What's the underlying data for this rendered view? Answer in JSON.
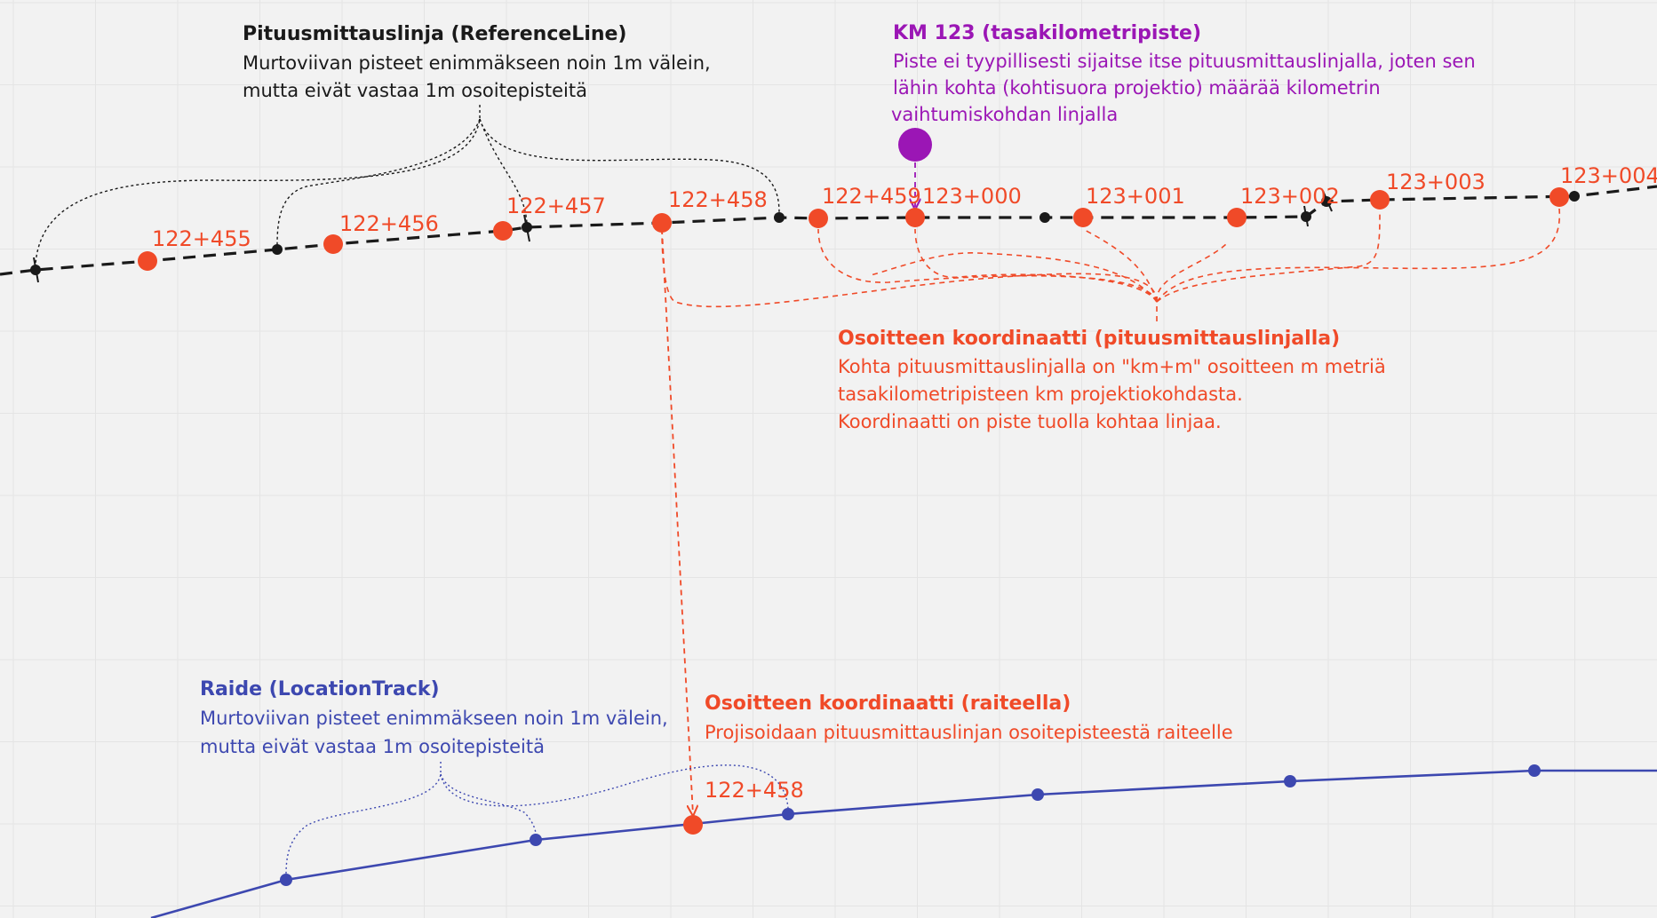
{
  "colors": {
    "background": "#f2f2f2",
    "grid": "#e4e4e4",
    "black": "#1a1a1a",
    "red": "#f04a28",
    "purple": "#9b16b5",
    "blue": "#3d48b0"
  },
  "reference_line_note": {
    "title": "Pituusmittauslinja (ReferenceLine)",
    "line1": "Murtoviivan pisteet enimmäkseen noin 1m välein,",
    "line2": "mutta eivät vastaa 1m osoitepisteitä"
  },
  "km_post_note": {
    "title": "KM 123 (tasakilometripiste)",
    "line1": "Piste ei tyypillisesti sijaitse itse pituusmittauslinjalla, joten sen",
    "line2": "lähin kohta (kohtisuora projektio) määrää kilometrin",
    "line3": "vaihtumiskohdan linjalla"
  },
  "address_coordinate_note": {
    "title": "Osoitteen koordinaatti (pituusmittauslinjalla)",
    "line1": "Kohta pituusmittauslinjalla on \"km+m\" osoitteen m metriä",
    "line2": "tasakilometripisteen km projektiokohdasta.",
    "line3": "Koordinaatti on piste tuolla kohtaa linjaa."
  },
  "location_track_note": {
    "title": "Raide (LocationTrack)",
    "line1": "Murtoviivan pisteet enimmäkseen noin 1m välein,",
    "line2": "mutta eivät vastaa 1m osoitepisteitä"
  },
  "track_coordinate_note": {
    "title": "Osoitteen koordinaatti (raiteella)",
    "line1": "Projisoidaan pituusmittauslinjan osoitepisteestä raiteelle"
  },
  "reference_addresses": [
    "122+455",
    "122+456",
    "122+457",
    "122+458",
    "122+459",
    "123+000",
    "123+001",
    "123+002",
    "123+003",
    "123+004"
  ],
  "track_address": "122+458"
}
